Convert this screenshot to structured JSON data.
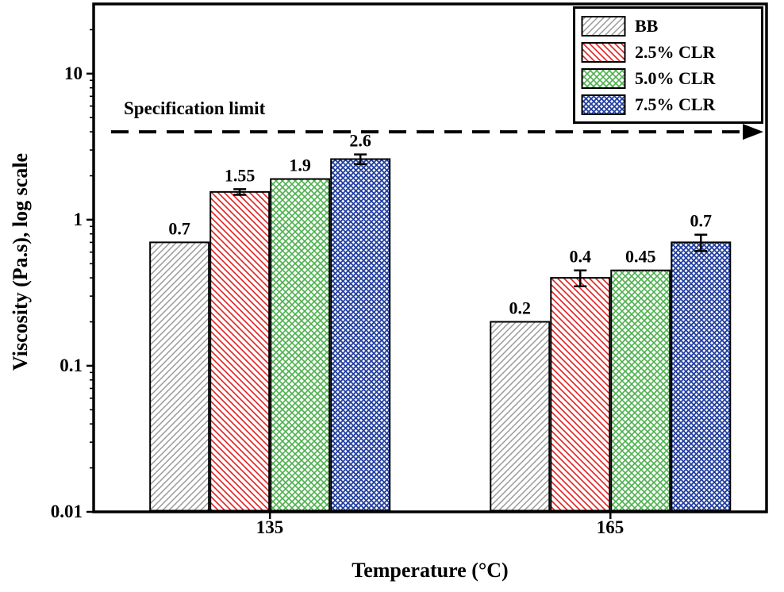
{
  "chart_data": {
    "type": "bar",
    "title": "",
    "xlabel": "Temperature (°C)",
    "ylabel": "Viscosity (Pa.s), log scale",
    "y_scale": "log",
    "ylim": [
      0.01,
      30
    ],
    "yticks": [
      0.01,
      0.1,
      1,
      10
    ],
    "ytick_labels": [
      "0.01",
      "0.1",
      "1",
      "10"
    ],
    "categories": [
      "135",
      "165"
    ],
    "series": [
      {
        "name": "BB",
        "values": [
          0.7,
          0.2
        ],
        "labels": [
          "0.7",
          "0.2"
        ],
        "errors": [
          0,
          0
        ],
        "color": "#9a9a9a",
        "hatch": "diag-up"
      },
      {
        "name": "2.5% CLR",
        "values": [
          1.55,
          0.4
        ],
        "labels": [
          "1.55",
          "0.4"
        ],
        "errors": [
          0.07,
          0.05
        ],
        "color": "#e02020",
        "hatch": "diag-down"
      },
      {
        "name": "5.0% CLR",
        "values": [
          1.9,
          0.45
        ],
        "labels": [
          "1.9",
          "0.45"
        ],
        "errors": [
          0,
          0
        ],
        "color": "#4db04d",
        "hatch": "cross"
      },
      {
        "name": "7.5% CLR",
        "values": [
          2.6,
          0.7
        ],
        "labels": [
          "2.6",
          "0.7"
        ],
        "errors": [
          0.2,
          0.09
        ],
        "color": "#2340a0",
        "hatch": "cross-dense"
      }
    ],
    "annotation": {
      "label": "Specification limit",
      "value": 4
    },
    "legend_position": "top-right",
    "grid": false,
    "frame_color": "#000000"
  }
}
